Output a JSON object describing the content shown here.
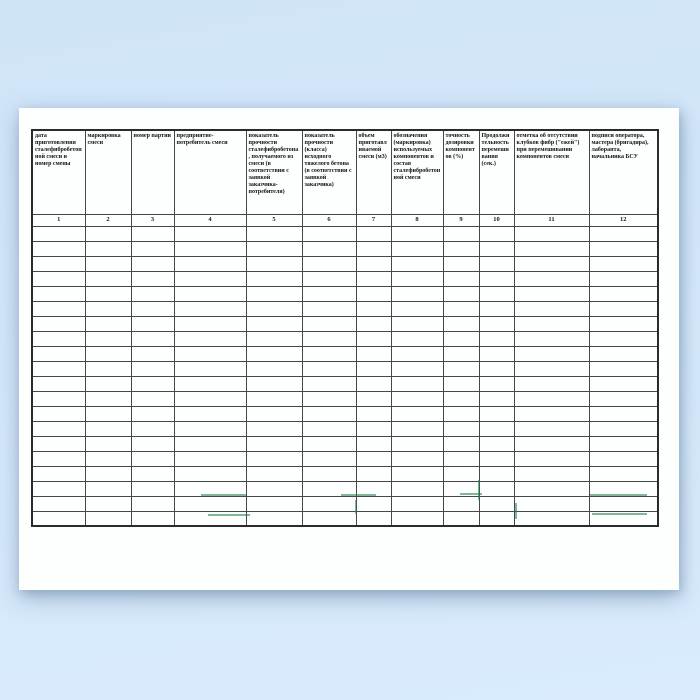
{
  "document": {
    "kind": "scanned blank table form, Russian",
    "sheet_orientation": "landscape"
  },
  "table": {
    "columns": [
      {
        "num": "1",
        "header": "дата приготовления сталефибробетонной смеси и номер смены"
      },
      {
        "num": "2",
        "header": "маркировка смеси"
      },
      {
        "num": "3",
        "header": "номер партии"
      },
      {
        "num": "4",
        "header": "предприятие-потребитель смеси"
      },
      {
        "num": "5",
        "header": "показатель прочности сталефибробетона, получаемого из смеси (в соответствии с заявкой заказчика-потребителя)"
      },
      {
        "num": "6",
        "header": "показатель прочности (класса) исходного тяжелого бетона (в соответствии с заявкой заказчика)"
      },
      {
        "num": "7",
        "header": "объем приготавливаемой смеси (м3)"
      },
      {
        "num": "8",
        "header": "обозначения (маркировка) используемых компонентов и состав сталефибробетонной смеси"
      },
      {
        "num": "9",
        "header": "точность дозировки компонентов (%)"
      },
      {
        "num": "10",
        "header": "Продолжительность перемешивания (сек.)"
      },
      {
        "num": "11",
        "header": "отметка об отсутствии клубков фибр (\"ежей\") при перемешивании компонентов смеси"
      },
      {
        "num": "12",
        "header": "подписи оператора, мастера (бригадира), лаборанта, начальника БСУ"
      }
    ],
    "body_rows": 20,
    "body_cells_empty": true
  },
  "colors": {
    "background_top": "#d0e4f8",
    "background_bottom": "#d9ebfd",
    "sheet": "#fdfefe",
    "grid_line": "#474747",
    "outer_border": "#2b2b2b",
    "artifact_green": "#1e7a46"
  }
}
